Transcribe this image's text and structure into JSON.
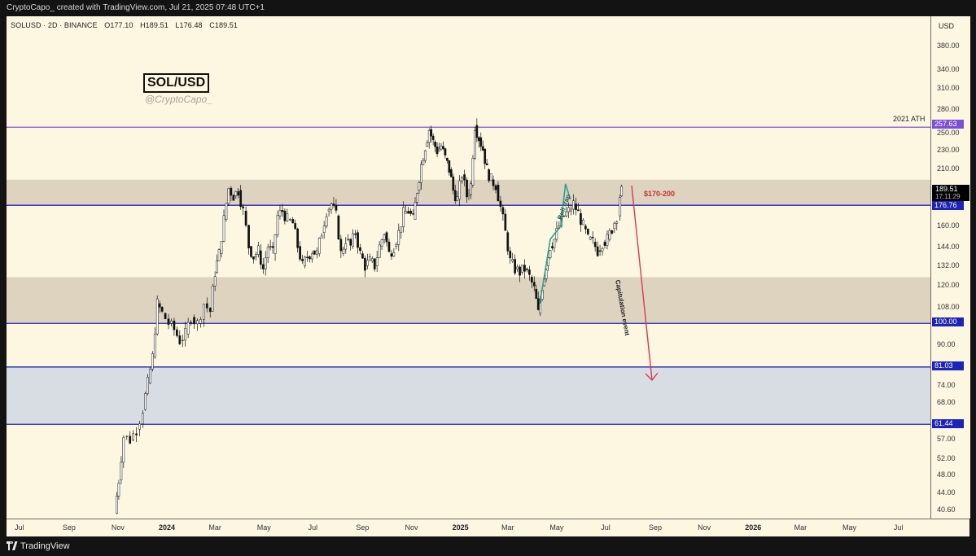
{
  "header": {
    "credit": "CryptoCapo_ created with TradingView.com, Jul 21, 2025 07:48 UTC+1"
  },
  "symbol": {
    "pair_info": "SOLUSD · 2D · BINANCE",
    "open": "O177.10",
    "high": "H189.51",
    "low": "L176.48",
    "close": "C189.51"
  },
  "badge": {
    "title": "SOL/USD",
    "handle": "@CryptoCapo_"
  },
  "axis": {
    "currency": "USD",
    "y_ticks": [
      "380.00",
      "340.00",
      "310.00",
      "280.00",
      "250.00",
      "230.00",
      "210.00",
      "160.00",
      "144.00",
      "132.00",
      "120.00",
      "108.00",
      "90.00",
      "74.00",
      "68.00",
      "57.00",
      "52.00",
      "48.00",
      "44.00",
      "40.60"
    ],
    "x_ticks": [
      "Jul",
      "Sep",
      "Nov",
      "2024",
      "Mar",
      "May",
      "Jul",
      "Sep",
      "Nov",
      "2025",
      "Mar",
      "May",
      "Jul",
      "Sep",
      "Nov",
      "2026",
      "Mar",
      "May",
      "Jul"
    ],
    "x_bold": [
      "2024",
      "2025",
      "2026"
    ]
  },
  "levels": {
    "ath": {
      "price": "257.63",
      "label": "2021 ATH",
      "color": "#7b4fd6"
    },
    "l176": {
      "price": "176.76",
      "color": "#1c23b8"
    },
    "l100": {
      "price": "100.00",
      "color": "#1c23b8"
    },
    "l81": {
      "price": "81.03",
      "color": "#1c23b8"
    },
    "l61": {
      "price": "61.44",
      "color": "#1c23b8"
    }
  },
  "current": {
    "price": "189.51",
    "countdown": "17:11:29"
  },
  "annotations": {
    "range": "$170-200",
    "capitulation": "Capitulation event",
    "bull_trap": "Bull trap"
  },
  "footer": {
    "brand": "TradingView"
  },
  "chart_data": {
    "type": "candlestick",
    "title": "SOL/USD",
    "symbol": "SOLUSD",
    "interval": "2D",
    "exchange": "BINANCE",
    "scale": "log",
    "ylim": [
      39,
      440
    ],
    "x_range": [
      "2023-06-15",
      "2026-08-10"
    ],
    "zones": [
      {
        "from": 176.76,
        "to": 200
      },
      {
        "from": 100,
        "to": 125
      },
      {
        "from": 61.44,
        "to": 81.03
      }
    ],
    "horizontal_lines": [
      257.63,
      176.76,
      100.0,
      81.03,
      61.44
    ],
    "price_path": [
      {
        "t": "2023-10-28",
        "p": 40
      },
      {
        "t": "2023-11-02",
        "p": 47
      },
      {
        "t": "2023-11-08",
        "p": 58
      },
      {
        "t": "2023-11-16",
        "p": 57
      },
      {
        "t": "2023-11-24",
        "p": 60
      },
      {
        "t": "2023-12-02",
        "p": 66
      },
      {
        "t": "2023-12-08",
        "p": 75
      },
      {
        "t": "2023-12-14",
        "p": 85
      },
      {
        "t": "2023-12-20",
        "p": 110
      },
      {
        "t": "2023-12-26",
        "p": 105
      },
      {
        "t": "2024-01-03",
        "p": 100
      },
      {
        "t": "2024-01-10",
        "p": 97
      },
      {
        "t": "2024-01-17",
        "p": 92
      },
      {
        "t": "2024-01-24",
        "p": 95
      },
      {
        "t": "2024-01-31",
        "p": 103
      },
      {
        "t": "2024-02-08",
        "p": 100
      },
      {
        "t": "2024-02-16",
        "p": 110
      },
      {
        "t": "2024-02-24",
        "p": 106
      },
      {
        "t": "2024-03-01",
        "p": 128
      },
      {
        "t": "2024-03-06",
        "p": 140
      },
      {
        "t": "2024-03-12",
        "p": 165
      },
      {
        "t": "2024-03-18",
        "p": 192
      },
      {
        "t": "2024-03-24",
        "p": 185
      },
      {
        "t": "2024-03-30",
        "p": 190
      },
      {
        "t": "2024-04-05",
        "p": 172
      },
      {
        "t": "2024-04-12",
        "p": 145
      },
      {
        "t": "2024-04-18",
        "p": 138
      },
      {
        "t": "2024-04-24",
        "p": 142
      },
      {
        "t": "2024-04-30",
        "p": 130
      },
      {
        "t": "2024-05-06",
        "p": 145
      },
      {
        "t": "2024-05-12",
        "p": 140
      },
      {
        "t": "2024-05-18",
        "p": 168
      },
      {
        "t": "2024-05-24",
        "p": 172
      },
      {
        "t": "2024-05-30",
        "p": 165
      },
      {
        "t": "2024-06-06",
        "p": 162
      },
      {
        "t": "2024-06-12",
        "p": 145
      },
      {
        "t": "2024-06-18",
        "p": 132
      },
      {
        "t": "2024-06-24",
        "p": 138
      },
      {
        "t": "2024-06-30",
        "p": 142
      },
      {
        "t": "2024-07-06",
        "p": 140
      },
      {
        "t": "2024-07-12",
        "p": 155
      },
      {
        "t": "2024-07-18",
        "p": 172
      },
      {
        "t": "2024-07-24",
        "p": 178
      },
      {
        "t": "2024-07-30",
        "p": 168
      },
      {
        "t": "2024-08-05",
        "p": 140
      },
      {
        "t": "2024-08-11",
        "p": 150
      },
      {
        "t": "2024-08-17",
        "p": 145
      },
      {
        "t": "2024-08-23",
        "p": 155
      },
      {
        "t": "2024-08-29",
        "p": 140
      },
      {
        "t": "2024-09-04",
        "p": 132
      },
      {
        "t": "2024-09-10",
        "p": 135
      },
      {
        "t": "2024-09-16",
        "p": 132
      },
      {
        "t": "2024-09-22",
        "p": 145
      },
      {
        "t": "2024-09-28",
        "p": 155
      },
      {
        "t": "2024-10-04",
        "p": 140
      },
      {
        "t": "2024-10-10",
        "p": 145
      },
      {
        "t": "2024-10-16",
        "p": 155
      },
      {
        "t": "2024-10-22",
        "p": 170
      },
      {
        "t": "2024-10-28",
        "p": 172
      },
      {
        "t": "2024-11-03",
        "p": 165
      },
      {
        "t": "2024-11-08",
        "p": 190
      },
      {
        "t": "2024-11-13",
        "p": 215
      },
      {
        "t": "2024-11-18",
        "p": 235
      },
      {
        "t": "2024-11-23",
        "p": 255
      },
      {
        "t": "2024-11-28",
        "p": 240
      },
      {
        "t": "2024-12-03",
        "p": 230
      },
      {
        "t": "2024-12-08",
        "p": 235
      },
      {
        "t": "2024-12-13",
        "p": 222
      },
      {
        "t": "2024-12-18",
        "p": 210
      },
      {
        "t": "2024-12-23",
        "p": 190
      },
      {
        "t": "2024-12-28",
        "p": 182
      },
      {
        "t": "2025-01-03",
        "p": 205
      },
      {
        "t": "2025-01-09",
        "p": 185
      },
      {
        "t": "2025-01-14",
        "p": 195
      },
      {
        "t": "2025-01-19",
        "p": 260
      },
      {
        "t": "2025-01-24",
        "p": 245
      },
      {
        "t": "2025-01-29",
        "p": 232
      },
      {
        "t": "2025-02-03",
        "p": 210
      },
      {
        "t": "2025-02-08",
        "p": 200
      },
      {
        "t": "2025-02-14",
        "p": 195
      },
      {
        "t": "2025-02-20",
        "p": 175
      },
      {
        "t": "2025-02-26",
        "p": 155
      },
      {
        "t": "2025-03-04",
        "p": 135
      },
      {
        "t": "2025-03-10",
        "p": 130
      },
      {
        "t": "2025-03-16",
        "p": 128
      },
      {
        "t": "2025-03-22",
        "p": 130
      },
      {
        "t": "2025-03-28",
        "p": 125
      },
      {
        "t": "2025-04-03",
        "p": 118
      },
      {
        "t": "2025-04-08",
        "p": 105
      },
      {
        "t": "2025-04-13",
        "p": 120
      },
      {
        "t": "2025-04-18",
        "p": 132
      },
      {
        "t": "2025-04-23",
        "p": 145
      },
      {
        "t": "2025-04-28",
        "p": 150
      },
      {
        "t": "2025-05-04",
        "p": 160
      },
      {
        "t": "2025-05-10",
        "p": 168
      },
      {
        "t": "2025-05-16",
        "p": 172
      },
      {
        "t": "2025-05-22",
        "p": 178
      },
      {
        "t": "2025-05-28",
        "p": 170
      },
      {
        "t": "2025-06-03",
        "p": 160
      },
      {
        "t": "2025-06-09",
        "p": 150
      },
      {
        "t": "2025-06-15",
        "p": 148
      },
      {
        "t": "2025-06-21",
        "p": 142
      },
      {
        "t": "2025-06-27",
        "p": 148
      },
      {
        "t": "2025-07-03",
        "p": 150
      },
      {
        "t": "2025-07-09",
        "p": 158
      },
      {
        "t": "2025-07-15",
        "p": 168
      },
      {
        "t": "2025-07-19",
        "p": 185
      },
      {
        "t": "2025-07-21",
        "p": 189.51
      }
    ]
  }
}
